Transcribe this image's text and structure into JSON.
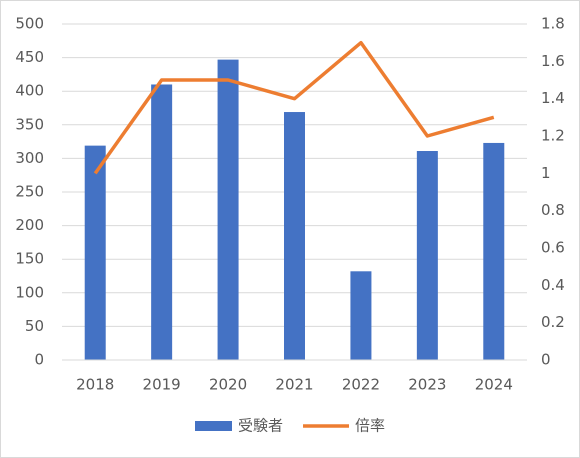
{
  "chart_data": {
    "type": "bar",
    "categories": [
      "2018",
      "2019",
      "2020",
      "2021",
      "2022",
      "2023",
      "2024"
    ],
    "series": [
      {
        "name": "受験者",
        "color": "#4472c4",
        "type": "bar",
        "values": [
          319,
          410,
          447,
          369,
          132,
          311,
          323
        ]
      },
      {
        "name": "倍率",
        "color": "#ed7d31",
        "type": "line",
        "axis": "y2",
        "values": [
          1.0,
          1.5,
          1.5,
          1.4,
          1.7,
          1.2,
          1.3
        ]
      }
    ],
    "ylim": [
      0,
      500
    ],
    "yticks": [
      0,
      50,
      100,
      150,
      200,
      250,
      300,
      350,
      400,
      450,
      500
    ],
    "y2lim": [
      0,
      1.8
    ],
    "y2ticks": [
      0,
      0.2,
      0.4,
      0.6,
      0.8,
      1,
      1.2,
      1.4,
      1.6,
      1.8
    ],
    "grid": true,
    "legend": "bottom"
  }
}
